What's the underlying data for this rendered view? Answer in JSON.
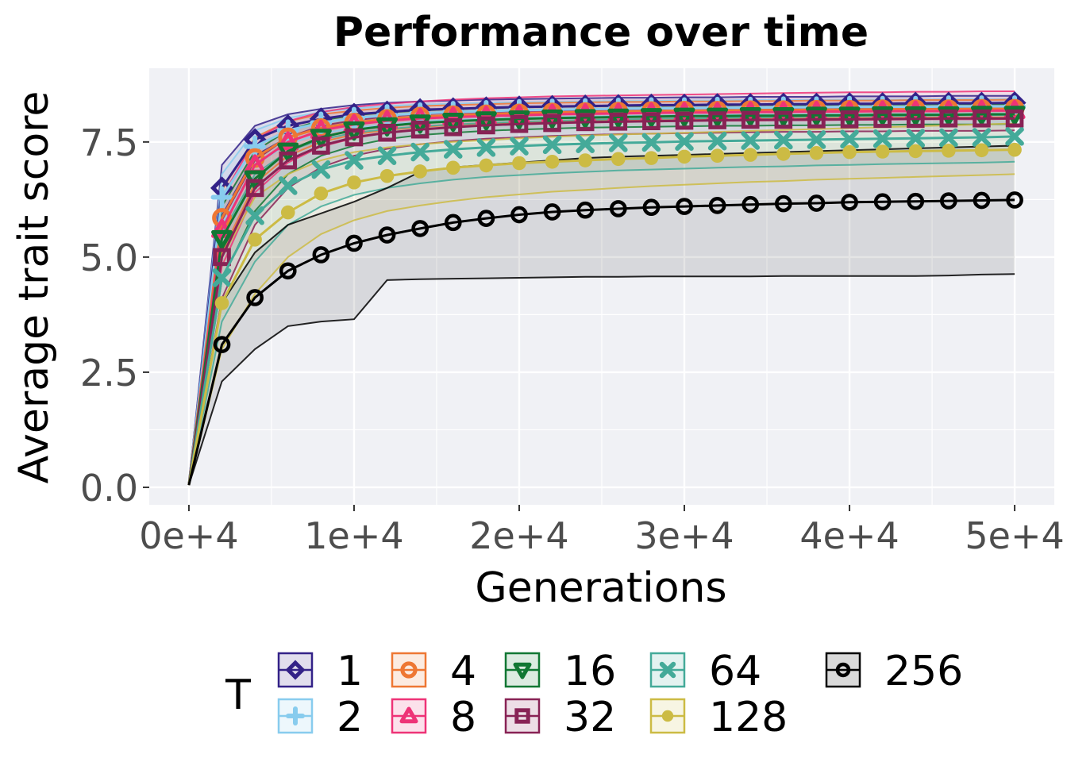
{
  "chart_data": {
    "type": "line",
    "title": "Performance over time",
    "xlabel": "Generations",
    "ylabel": "Average trait score",
    "xlim": [
      -2400,
      52400
    ],
    "ylim": [
      -0.38,
      9.1
    ],
    "x_ticks": [
      0,
      10000,
      20000,
      30000,
      40000,
      50000
    ],
    "x_tick_labels": [
      "0e+4",
      "1e+4",
      "2e+4",
      "3e+4",
      "4e+4",
      "5e+4"
    ],
    "y_ticks": [
      0,
      2.5,
      5,
      7.5
    ],
    "y_tick_labels": [
      "0.0",
      "2.5",
      "5.0",
      "7.5"
    ],
    "grid": true,
    "legend_position": "bottom",
    "legend_title": "T",
    "x": [
      0,
      2000,
      4000,
      6000,
      8000,
      10000,
      12000,
      14000,
      16000,
      18000,
      20000,
      22000,
      24000,
      26000,
      28000,
      30000,
      32000,
      34000,
      36000,
      38000,
      40000,
      42000,
      44000,
      46000,
      48000,
      50000
    ],
    "series": [
      {
        "name": "1",
        "color": "#332288",
        "marker": "diamond",
        "values": [
          0.05,
          6.5,
          7.55,
          7.85,
          8.0,
          8.1,
          8.15,
          8.2,
          8.22,
          8.24,
          8.26,
          8.27,
          8.28,
          8.29,
          8.3,
          8.3,
          8.31,
          8.31,
          8.32,
          8.32,
          8.33,
          8.33,
          8.34,
          8.34,
          8.34,
          8.35
        ],
        "lower": [
          0.05,
          5.9,
          7.2,
          7.6,
          7.8,
          7.92,
          8.0,
          8.05,
          8.08,
          8.1,
          8.12,
          8.14,
          8.15,
          8.16,
          8.17,
          8.18,
          8.18,
          8.19,
          8.19,
          8.2,
          8.2,
          8.2,
          8.21,
          8.21,
          8.21,
          8.22
        ],
        "upper": [
          0.05,
          7.0,
          7.85,
          8.1,
          8.22,
          8.3,
          8.35,
          8.38,
          8.4,
          8.42,
          8.43,
          8.44,
          8.45,
          8.46,
          8.46,
          8.47,
          8.47,
          8.48,
          8.48,
          8.48,
          8.49,
          8.49,
          8.49,
          8.5,
          8.5,
          8.5
        ]
      },
      {
        "name": "2",
        "color": "#88CCEE",
        "marker": "plus",
        "values": [
          0.05,
          6.3,
          7.4,
          7.75,
          7.92,
          8.02,
          8.08,
          8.12,
          8.15,
          8.17,
          8.19,
          8.2,
          8.21,
          8.22,
          8.23,
          8.23,
          8.24,
          8.24,
          8.25,
          8.25,
          8.26,
          8.26,
          8.26,
          8.27,
          8.27,
          8.27
        ],
        "lower": [
          0.05,
          5.7,
          7.0,
          7.45,
          7.68,
          7.8,
          7.88,
          7.94,
          7.98,
          8.0,
          8.02,
          8.04,
          8.05,
          8.06,
          8.07,
          8.08,
          8.08,
          8.09,
          8.09,
          8.1,
          8.1,
          8.1,
          8.11,
          8.11,
          8.11,
          8.12
        ],
        "upper": [
          0.05,
          6.8,
          7.75,
          8.02,
          8.15,
          8.23,
          8.28,
          8.31,
          8.33,
          8.35,
          8.36,
          8.37,
          8.38,
          8.39,
          8.39,
          8.4,
          8.4,
          8.41,
          8.41,
          8.41,
          8.42,
          8.42,
          8.42,
          8.43,
          8.43,
          8.43
        ]
      },
      {
        "name": "4",
        "color": "#EE7733",
        "marker": "circle",
        "values": [
          0.05,
          5.85,
          7.15,
          7.6,
          7.8,
          7.92,
          8.0,
          8.05,
          8.08,
          8.1,
          8.12,
          8.14,
          8.15,
          8.16,
          8.17,
          8.18,
          8.18,
          8.19,
          8.19,
          8.2,
          8.2,
          8.21,
          8.21,
          8.21,
          8.22,
          8.22
        ],
        "lower": [
          0.05,
          5.1,
          6.6,
          7.2,
          7.5,
          7.66,
          7.76,
          7.82,
          7.87,
          7.9,
          7.92,
          7.94,
          7.96,
          7.97,
          7.98,
          7.99,
          8.0,
          8.0,
          8.01,
          8.01,
          8.02,
          8.02,
          8.03,
          8.03,
          8.03,
          8.04
        ],
        "upper": [
          0.05,
          6.45,
          7.6,
          7.95,
          8.1,
          8.18,
          8.24,
          8.28,
          8.3,
          8.32,
          8.34,
          8.35,
          8.36,
          8.37,
          8.37,
          8.38,
          8.38,
          8.39,
          8.39,
          8.4,
          8.4,
          8.4,
          8.41,
          8.41,
          8.41,
          8.42
        ]
      },
      {
        "name": "8",
        "color": "#EE3377",
        "marker": "triangle",
        "values": [
          0.05,
          5.6,
          7.0,
          7.5,
          7.75,
          7.88,
          7.96,
          8.01,
          8.04,
          8.06,
          8.08,
          8.1,
          8.11,
          8.12,
          8.13,
          8.14,
          8.14,
          8.15,
          8.15,
          8.16,
          8.16,
          8.17,
          8.17,
          8.17,
          8.18,
          8.18
        ],
        "lower": [
          0.05,
          4.8,
          6.4,
          7.05,
          7.4,
          7.58,
          7.7,
          7.77,
          7.82,
          7.86,
          7.88,
          7.9,
          7.92,
          7.93,
          7.94,
          7.95,
          7.96,
          7.96,
          7.97,
          7.97,
          7.98,
          7.98,
          7.99,
          7.99,
          7.99,
          8.0
        ],
        "upper": [
          0.05,
          6.3,
          7.55,
          7.95,
          8.15,
          8.26,
          8.33,
          8.38,
          8.42,
          8.45,
          8.47,
          8.49,
          8.5,
          8.51,
          8.52,
          8.53,
          8.54,
          8.55,
          8.56,
          8.57,
          8.58,
          8.58,
          8.59,
          8.59,
          8.6,
          8.6
        ]
      },
      {
        "name": "16",
        "color": "#117733",
        "marker": "triangle-down",
        "values": [
          0.05,
          5.4,
          6.7,
          7.3,
          7.6,
          7.76,
          7.85,
          7.91,
          7.95,
          7.98,
          8.0,
          8.02,
          8.03,
          8.04,
          8.05,
          8.06,
          8.06,
          8.07,
          8.07,
          8.08,
          8.08,
          8.09,
          8.09,
          8.09,
          8.1,
          8.1
        ],
        "lower": [
          0.05,
          4.5,
          6.0,
          6.8,
          7.2,
          7.42,
          7.56,
          7.65,
          7.7,
          7.74,
          7.77,
          7.79,
          7.81,
          7.82,
          7.83,
          7.84,
          7.85,
          7.85,
          7.86,
          7.86,
          7.87,
          7.87,
          7.88,
          7.88,
          7.88,
          7.89
        ],
        "upper": [
          0.05,
          6.1,
          7.3,
          7.75,
          7.97,
          8.08,
          8.14,
          8.18,
          8.21,
          8.23,
          8.25,
          8.26,
          8.27,
          8.28,
          8.28,
          8.29,
          8.29,
          8.3,
          8.3,
          8.3,
          8.31,
          8.31,
          8.31,
          8.32,
          8.32,
          8.32
        ]
      },
      {
        "name": "32",
        "color": "#882255",
        "marker": "square",
        "values": [
          0.05,
          5.0,
          6.5,
          7.1,
          7.42,
          7.6,
          7.7,
          7.77,
          7.82,
          7.86,
          7.89,
          7.91,
          7.93,
          7.94,
          7.95,
          7.96,
          7.97,
          7.98,
          7.98,
          7.99,
          7.99,
          8.0,
          8.0,
          8.01,
          8.01,
          8.01
        ],
        "lower": [
          0.05,
          4.1,
          5.7,
          6.5,
          6.95,
          7.2,
          7.35,
          7.45,
          7.52,
          7.57,
          7.6,
          7.63,
          7.65,
          7.67,
          7.68,
          7.69,
          7.7,
          7.71,
          7.72,
          7.72,
          7.73,
          7.73,
          7.74,
          7.74,
          7.74,
          7.75
        ],
        "upper": [
          0.05,
          5.8,
          7.1,
          7.6,
          7.85,
          7.97,
          8.05,
          8.1,
          8.13,
          8.15,
          8.17,
          8.18,
          8.19,
          8.2,
          8.21,
          8.21,
          8.22,
          8.22,
          8.23,
          8.23,
          8.23,
          8.24,
          8.24,
          8.24,
          8.25,
          8.25
        ]
      },
      {
        "name": "64",
        "color": "#44AA99",
        "marker": "cross",
        "values": [
          0.05,
          4.55,
          5.9,
          6.55,
          6.9,
          7.1,
          7.2,
          7.28,
          7.34,
          7.38,
          7.41,
          7.44,
          7.46,
          7.48,
          7.49,
          7.51,
          7.52,
          7.53,
          7.54,
          7.55,
          7.56,
          7.57,
          7.58,
          7.59,
          7.6,
          7.62
        ],
        "lower": [
          0.05,
          3.6,
          4.9,
          5.7,
          6.1,
          6.35,
          6.5,
          6.6,
          6.68,
          6.74,
          6.78,
          6.82,
          6.85,
          6.88,
          6.9,
          6.92,
          6.94,
          6.96,
          6.97,
          6.99,
          7.0,
          7.02,
          7.03,
          7.04,
          7.05,
          7.07
        ],
        "upper": [
          0.05,
          5.5,
          6.8,
          7.3,
          7.55,
          7.7,
          7.78,
          7.84,
          7.88,
          7.91,
          7.94,
          7.96,
          7.98,
          7.99,
          8.0,
          8.01,
          8.02,
          8.03,
          8.04,
          8.05,
          8.06,
          8.06,
          8.07,
          8.08,
          8.08,
          8.09
        ]
      },
      {
        "name": "128",
        "color": "#CCBB44",
        "marker": "dot",
        "values": [
          0.05,
          4.0,
          5.38,
          5.97,
          6.38,
          6.62,
          6.76,
          6.86,
          6.94,
          6.99,
          7.04,
          7.07,
          7.1,
          7.13,
          7.15,
          7.18,
          7.2,
          7.22,
          7.24,
          7.26,
          7.28,
          7.29,
          7.3,
          7.31,
          7.32,
          7.33
        ],
        "lower": [
          0.05,
          3.0,
          4.2,
          5.0,
          5.5,
          5.8,
          6.0,
          6.12,
          6.22,
          6.3,
          6.36,
          6.42,
          6.46,
          6.5,
          6.54,
          6.57,
          6.6,
          6.63,
          6.65,
          6.68,
          6.7,
          6.72,
          6.74,
          6.76,
          6.78,
          6.8
        ],
        "upper": [
          0.05,
          5.0,
          6.3,
          6.8,
          7.1,
          7.28,
          7.38,
          7.45,
          7.5,
          7.54,
          7.58,
          7.61,
          7.64,
          7.66,
          7.68,
          7.7,
          7.72,
          7.74,
          7.76,
          7.78,
          7.8,
          7.82,
          7.84,
          7.86,
          7.88,
          7.9
        ]
      },
      {
        "name": "256",
        "color": "#000000",
        "marker": "ring",
        "values": [
          0.05,
          3.1,
          4.12,
          4.7,
          5.05,
          5.3,
          5.48,
          5.62,
          5.75,
          5.84,
          5.92,
          5.98,
          6.02,
          6.05,
          6.08,
          6.1,
          6.12,
          6.14,
          6.16,
          6.17,
          6.19,
          6.2,
          6.21,
          6.22,
          6.23,
          6.24
        ],
        "lower": [
          0.05,
          2.3,
          3.0,
          3.5,
          3.6,
          3.65,
          4.5,
          4.52,
          4.53,
          4.54,
          4.55,
          4.56,
          4.57,
          4.57,
          4.58,
          4.58,
          4.58,
          4.58,
          4.59,
          4.59,
          4.59,
          4.59,
          4.59,
          4.6,
          4.62,
          4.63
        ],
        "upper": [
          0.05,
          4.0,
          5.1,
          5.7,
          5.95,
          6.2,
          6.5,
          6.85,
          6.95,
          7.0,
          7.05,
          7.1,
          7.15,
          7.18,
          7.2,
          7.22,
          7.24,
          7.26,
          7.28,
          7.3,
          7.32,
          7.34,
          7.36,
          7.38,
          7.4,
          7.42
        ]
      }
    ]
  }
}
